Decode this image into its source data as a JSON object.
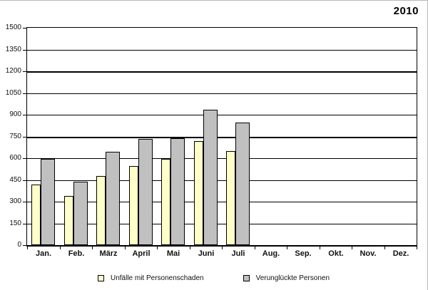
{
  "title": "2010",
  "chart_data": {
    "type": "bar",
    "title": "2010",
    "categories": [
      "Jan.",
      "Feb.",
      "März",
      "April",
      "Mai",
      "Juni",
      "Juli",
      "Aug.",
      "Sep.",
      "Okt.",
      "Nov.",
      "Dez."
    ],
    "series": [
      {
        "name": "Unfälle mit Personenschaden",
        "color": "#FFFFC9",
        "border_color": "#000000",
        "values": [
          420,
          340,
          475,
          545,
          595,
          720,
          650,
          null,
          null,
          null,
          null,
          null
        ]
      },
      {
        "name": "Verunglückte Personen",
        "color": "#C0C0C0",
        "border_color": "#000000",
        "values": [
          595,
          440,
          645,
          735,
          740,
          935,
          845,
          null,
          null,
          null,
          null,
          null
        ]
      }
    ],
    "xlabel": "",
    "ylabel": "",
    "ylim": [
      0,
      1500
    ],
    "yticks": [
      0,
      150,
      300,
      450,
      600,
      750,
      900,
      1050,
      1200,
      1350,
      1500
    ],
    "bold_gridlines": [
      750,
      1200
    ],
    "grid": "horizontal",
    "legend_position": "bottom"
  }
}
